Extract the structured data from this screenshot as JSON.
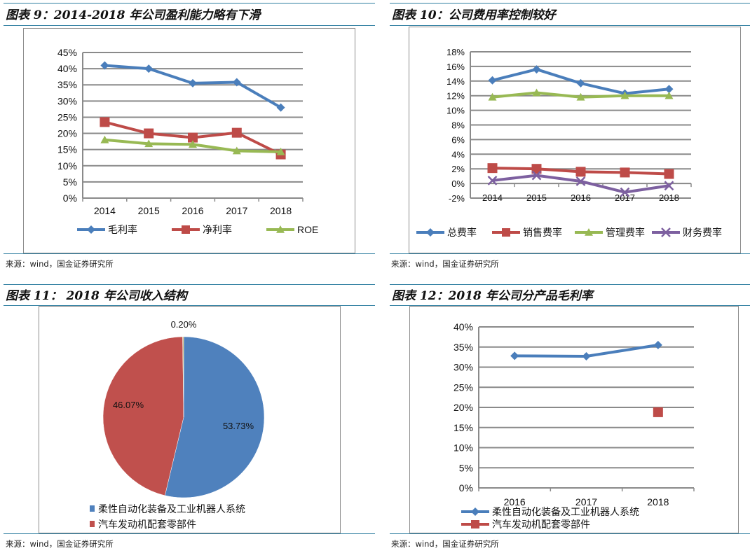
{
  "panels": [
    {
      "title": "图表 9：2014-2018 年公司盈利能力略有下滑",
      "source": "来源：wind，国金证券研究所"
    },
    {
      "title": "图表 10：公司费用率控制较好",
      "source": "来源：wind，国金证券研究所"
    },
    {
      "title": "图表 11： 2018 年公司收入结构",
      "source": "来源：wind，国金证券研究所"
    },
    {
      "title": "图表 12：2018 年公司分产品毛利率",
      "source": "来源：wind，国金证券研究所"
    }
  ],
  "chart_data": [
    {
      "type": "line",
      "categories": [
        "2014",
        "2015",
        "2016",
        "2017",
        "2018"
      ],
      "ylim": [
        0,
        45
      ],
      "ystep": 5,
      "yunit": "%",
      "grid": true,
      "legend": "bottom",
      "series": [
        {
          "name": "毛利率",
          "values": [
            41.0,
            40.0,
            35.5,
            35.8,
            28.0
          ],
          "color": "#4a7ebb",
          "marker": "diamond"
        },
        {
          "name": "净利率",
          "values": [
            23.5,
            20.0,
            18.7,
            20.2,
            13.5
          ],
          "color": "#be4b48",
          "marker": "square"
        },
        {
          "name": "ROE",
          "values": [
            18.0,
            16.8,
            16.6,
            14.6,
            14.3
          ],
          "color": "#98b954",
          "marker": "triangle"
        }
      ]
    },
    {
      "type": "line",
      "categories": [
        "2014",
        "2015",
        "2016",
        "2017",
        "2018"
      ],
      "ylim": [
        -2,
        18
      ],
      "ystep": 2,
      "yunit": "%",
      "grid": true,
      "legend": "bottom",
      "series": [
        {
          "name": "总费率",
          "values": [
            14.1,
            15.6,
            13.7,
            12.3,
            12.9
          ],
          "color": "#4a7ebb",
          "marker": "diamond"
        },
        {
          "name": "销售费率",
          "values": [
            2.1,
            2.0,
            1.6,
            1.5,
            1.3
          ],
          "color": "#be4b48",
          "marker": "square"
        },
        {
          "name": "管理费率",
          "values": [
            11.8,
            12.4,
            11.8,
            12.0,
            12.0
          ],
          "color": "#98b954",
          "marker": "triangle"
        },
        {
          "name": "财务费率",
          "values": [
            0.4,
            1.1,
            0.3,
            -1.2,
            -0.3
          ],
          "color": "#7d60a0",
          "marker": "x"
        }
      ]
    },
    {
      "type": "pie",
      "legend": "bottom",
      "slices": [
        {
          "name": "柔性自动化装备及工业机器人系统",
          "value": 53.73,
          "label": "53.73%",
          "color": "#4f81bd"
        },
        {
          "name": "汽车发动机配套零部件",
          "value": 46.07,
          "label": "46.07%",
          "color": "#c0504d"
        },
        {
          "name": "",
          "value": 0.2,
          "label": "0.20%",
          "color": "#c8b560"
        }
      ]
    },
    {
      "type": "line",
      "categories": [
        "2016",
        "2017",
        "2018"
      ],
      "ylim": [
        0,
        40
      ],
      "ystep": 5,
      "yunit": "%",
      "grid": true,
      "legend": "bottom",
      "series": [
        {
          "name": "柔性自动化装备及工业机器人系统",
          "values": [
            32.8,
            32.7,
            35.5
          ],
          "color": "#4a7ebb",
          "marker": "diamond"
        },
        {
          "name": "汽车发动机配套零部件",
          "values": [
            null,
            null,
            18.8
          ],
          "color": "#be4b48",
          "marker": "square"
        }
      ]
    }
  ]
}
